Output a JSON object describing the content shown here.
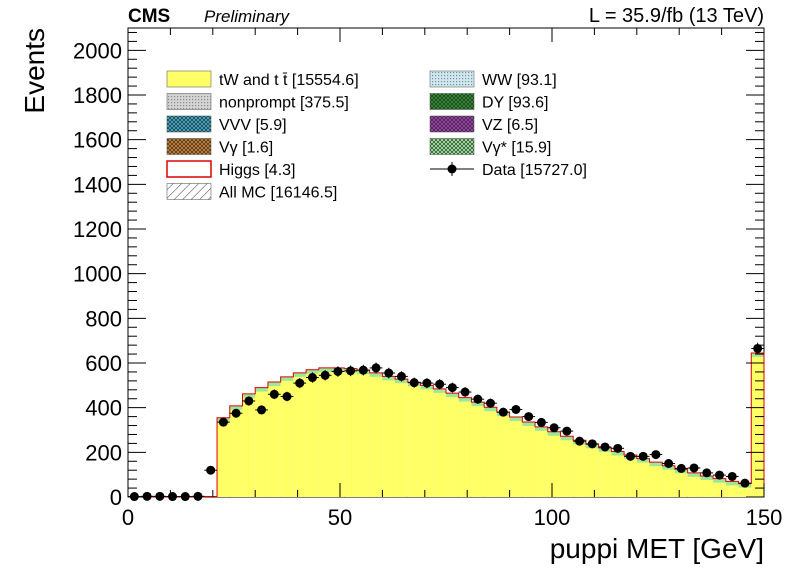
{
  "header": {
    "experiment": "CMS",
    "status": "Preliminary",
    "lumi": "L = 35.9/fb (13 TeV)"
  },
  "chart_data": {
    "type": "bar",
    "subtype": "stacked-histogram",
    "xlabel": "puppi MET [GeV]",
    "ylabel": "Events",
    "xlim": [
      0,
      150
    ],
    "ylim": [
      0,
      2100
    ],
    "x_ticks": [
      0,
      50,
      100,
      150
    ],
    "y_ticks": [
      0,
      200,
      400,
      600,
      800,
      1000,
      1200,
      1400,
      1600,
      1800,
      2000
    ],
    "bin_width": 3,
    "grid": false,
    "legend_position": "top",
    "legend": [
      {
        "label": "tW and t t̄ [15554.6]",
        "kind": "fill",
        "color": "#ffff66",
        "hatch": "none"
      },
      {
        "label": "WW [93.1]",
        "kind": "fill",
        "color": "#cde9f2",
        "hatch": "dots"
      },
      {
        "label": "nonprompt [375.5]",
        "kind": "fill",
        "color": "#d4d4d4",
        "hatch": "dots"
      },
      {
        "label": "DY [93.6]",
        "kind": "fill",
        "color": "#2f8f2f",
        "hatch": "cross"
      },
      {
        "label": "VVV [5.9]",
        "kind": "fill",
        "color": "#3fa8c8",
        "hatch": "cross"
      },
      {
        "label": "VZ [6.5]",
        "kind": "fill",
        "color": "#a040b0",
        "hatch": "cross"
      },
      {
        "label": "Vγ [1.6]",
        "kind": "fill",
        "color": "#c98032",
        "hatch": "cross"
      },
      {
        "label": "Vγ* [15.9]",
        "kind": "fill",
        "color": "#9be89b",
        "hatch": "cross"
      },
      {
        "label": "Higgs [4.3]",
        "kind": "line-box",
        "color": "#dd0000",
        "hatch": "none"
      },
      {
        "label": "Data [15727.0]",
        "kind": "marker",
        "color": "#000000",
        "hatch": "none"
      },
      {
        "label": "All MC [16146.5]",
        "kind": "fill",
        "color": "#ffffff",
        "hatch": "diag"
      }
    ],
    "series": [
      {
        "name": "All MC [16146.5]",
        "role": "mc-stack-total",
        "values": [
          0,
          0,
          0,
          0,
          0,
          0,
          2,
          355,
          408,
          462,
          490,
          515,
          538,
          556,
          570,
          578,
          578,
          575,
          568,
          556,
          540,
          528,
          514,
          500,
          484,
          465,
          445,
          425,
          402,
          380,
          358,
          336,
          314,
          292,
          272,
          254,
          236,
          220,
          204,
          188,
          172,
          156,
          140,
          124,
          108,
          94,
          82,
          70,
          60,
          645
        ]
      },
      {
        "name": "Data [15727.0]",
        "role": "data",
        "values": [
          2,
          3,
          3,
          2,
          2,
          3,
          120,
          335,
          375,
          430,
          390,
          460,
          450,
          510,
          535,
          545,
          562,
          565,
          568,
          578,
          555,
          540,
          512,
          510,
          505,
          490,
          470,
          438,
          420,
          380,
          392,
          360,
          334,
          310,
          295,
          250,
          238,
          224,
          218,
          182,
          182,
          190,
          150,
          128,
          130,
          108,
          98,
          92,
          62,
          665
        ]
      }
    ]
  }
}
